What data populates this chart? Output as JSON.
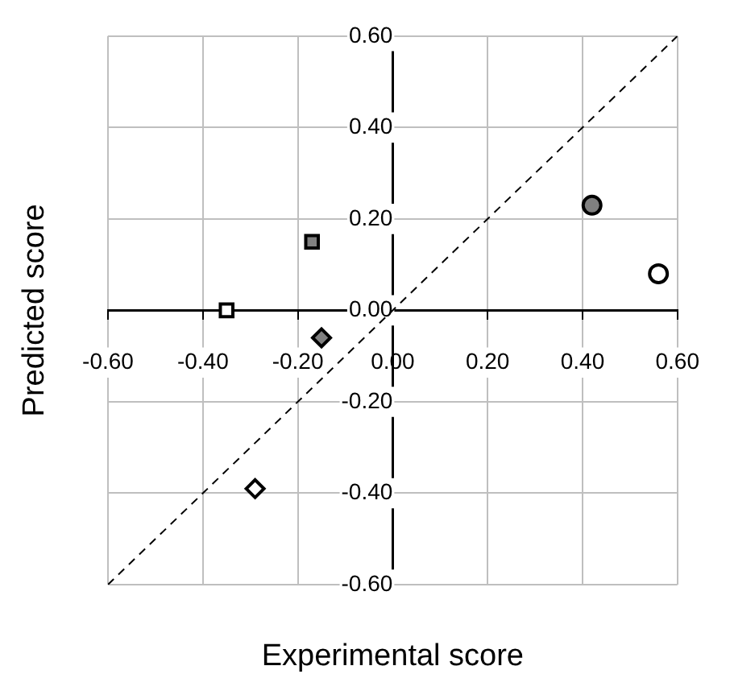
{
  "chart_data": {
    "type": "scatter",
    "xlabel": "Experimental score",
    "ylabel": "Predicted score",
    "grid": true,
    "xlim": [
      -0.6,
      0.6
    ],
    "ylim": [
      -0.6,
      0.6
    ],
    "xticks": [
      {
        "value": -0.6,
        "label": "-0.60"
      },
      {
        "value": -0.4,
        "label": "-0.40"
      },
      {
        "value": -0.2,
        "label": "-0.20"
      },
      {
        "value": 0,
        "label": "0.00"
      },
      {
        "value": 0.2,
        "label": "0.20"
      },
      {
        "value": 0.4,
        "label": "0.40"
      },
      {
        "value": 0.6,
        "label": "0.60"
      }
    ],
    "yticks": [
      {
        "value": -0.6,
        "label": "-0.60"
      },
      {
        "value": -0.4,
        "label": "-0.40"
      },
      {
        "value": -0.2,
        "label": "-0.20"
      },
      {
        "value": 0,
        "label": "0.00"
      },
      {
        "value": 0.2,
        "label": "0.20"
      },
      {
        "value": 0.4,
        "label": "0.40"
      },
      {
        "value": 0.6,
        "label": "0.60"
      }
    ],
    "series": [
      {
        "type": "line",
        "x": [
          -0.6,
          0.6
        ],
        "values": [
          -0.6,
          0.6
        ],
        "color": "#000000",
        "line_style": "dashed",
        "marker": "none"
      },
      {
        "type": "scatter",
        "x": [
          0.42
        ],
        "values": [
          0.23
        ],
        "color": "#808080",
        "marker": "circle"
      },
      {
        "type": "scatter",
        "x": [
          0.56
        ],
        "values": [
          0.08
        ],
        "color": "#ffffff",
        "marker": "circle"
      },
      {
        "type": "scatter",
        "x": [
          -0.17
        ],
        "values": [
          0.15
        ],
        "color": "#808080",
        "marker": "square"
      },
      {
        "type": "scatter",
        "x": [
          -0.35
        ],
        "values": [
          0
        ],
        "color": "#ffffff",
        "marker": "square"
      },
      {
        "type": "scatter",
        "x": [
          -0.15
        ],
        "values": [
          -0.06
        ],
        "color": "#808080",
        "marker": "diamond"
      },
      {
        "type": "scatter",
        "x": [
          -0.29
        ],
        "values": [
          -0.39
        ],
        "color": "#ffffff",
        "marker": "diamond"
      }
    ]
  }
}
